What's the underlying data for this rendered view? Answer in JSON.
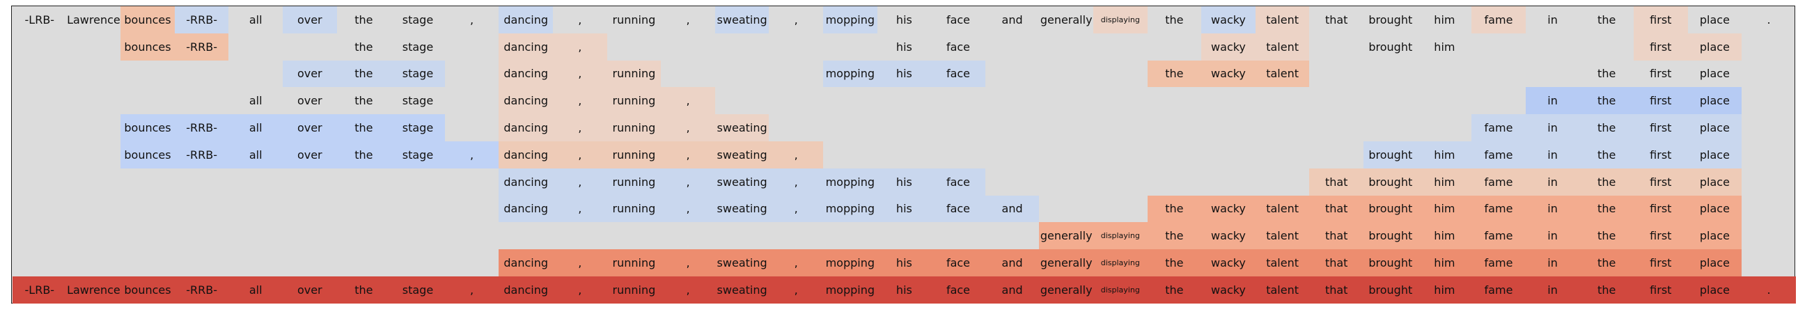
{
  "tokens": [
    "-LRB-",
    "Lawrence",
    "bounces",
    "-RRB-",
    "all",
    "over",
    "the",
    "stage",
    ",",
    "dancing",
    ",",
    "running",
    ",",
    "sweating",
    ",",
    "mopping",
    "his",
    "face",
    "and",
    "generally",
    "displaying",
    "the",
    "wacky",
    "talent",
    "that",
    "brought",
    "him",
    "fame",
    "in",
    "the",
    "first",
    "place",
    "."
  ],
  "small_tokens": [
    "displaying"
  ],
  "palette": {
    "background": "#dcdcdc",
    "blue_light": "#c9d7ee",
    "blue_mid": "#bfd2f6",
    "blue_strong": "#b6cbf4",
    "orange_light": "#ecd3c6",
    "orange_pale": "#eecbb7",
    "orange_mid": "#f1c1a7",
    "orange_strong": "#f3ac8f",
    "orange_deep": "#ed8d6f",
    "red": "#d1483e"
  },
  "rows": [
    {
      "spans": [
        [
          0,
          0,
          null
        ],
        [
          1,
          1,
          null
        ],
        [
          2,
          2,
          "orange_mid"
        ],
        [
          3,
          3,
          "blue_light"
        ],
        [
          4,
          4,
          null
        ],
        [
          5,
          5,
          "blue_light"
        ],
        [
          6,
          6,
          null
        ],
        [
          7,
          7,
          null
        ],
        [
          8,
          8,
          null
        ],
        [
          9,
          9,
          "blue_light"
        ],
        [
          10,
          10,
          null
        ],
        [
          11,
          11,
          null
        ],
        [
          12,
          12,
          null
        ],
        [
          13,
          13,
          "blue_light"
        ],
        [
          14,
          14,
          null
        ],
        [
          15,
          15,
          "blue_light"
        ],
        [
          16,
          16,
          null
        ],
        [
          17,
          17,
          null
        ],
        [
          18,
          18,
          null
        ],
        [
          19,
          19,
          null
        ],
        [
          20,
          20,
          "orange_light"
        ],
        [
          21,
          21,
          null
        ],
        [
          22,
          22,
          "blue_light"
        ],
        [
          23,
          23,
          "orange_light"
        ],
        [
          24,
          24,
          null
        ],
        [
          25,
          25,
          null
        ],
        [
          26,
          26,
          null
        ],
        [
          27,
          27,
          "orange_light"
        ],
        [
          28,
          28,
          null
        ],
        [
          29,
          29,
          null
        ],
        [
          30,
          30,
          "orange_light"
        ],
        [
          31,
          31,
          null
        ],
        [
          32,
          32,
          null
        ]
      ]
    },
    {
      "spans": [
        [
          2,
          2,
          "orange_mid"
        ],
        [
          3,
          3,
          "orange_mid"
        ],
        [
          6,
          7,
          null
        ],
        [
          9,
          10,
          "orange_light"
        ],
        [
          16,
          17,
          null
        ],
        [
          22,
          23,
          "orange_light"
        ],
        [
          25,
          26,
          null
        ],
        [
          30,
          31,
          "orange_light"
        ]
      ]
    },
    {
      "spans": [
        [
          5,
          7,
          "blue_light"
        ],
        [
          9,
          11,
          "orange_light"
        ],
        [
          15,
          17,
          "blue_light"
        ],
        [
          21,
          23,
          "orange_mid"
        ],
        [
          29,
          31,
          null
        ]
      ]
    },
    {
      "spans": [
        [
          4,
          7,
          null
        ],
        [
          9,
          12,
          "orange_light"
        ],
        [
          28,
          31,
          "blue_strong"
        ]
      ]
    },
    {
      "spans": [
        [
          2,
          7,
          "blue_mid"
        ],
        [
          9,
          13,
          "orange_light"
        ],
        [
          27,
          31,
          "blue_light"
        ]
      ]
    },
    {
      "spans": [
        [
          2,
          8,
          "blue_mid"
        ],
        [
          9,
          14,
          "orange_pale"
        ],
        [
          25,
          31,
          "blue_light"
        ]
      ]
    },
    {
      "spans": [
        [
          9,
          17,
          "blue_light"
        ],
        [
          24,
          31,
          "orange_pale"
        ]
      ]
    },
    {
      "spans": [
        [
          9,
          18,
          "blue_light"
        ],
        [
          21,
          31,
          "orange_strong"
        ]
      ]
    },
    {
      "spans": [
        [
          19,
          31,
          "orange_strong"
        ]
      ]
    },
    {
      "spans": [
        [
          9,
          31,
          "orange_deep"
        ]
      ]
    },
    {
      "spans": [
        [
          0,
          32,
          "red"
        ]
      ]
    }
  ]
}
